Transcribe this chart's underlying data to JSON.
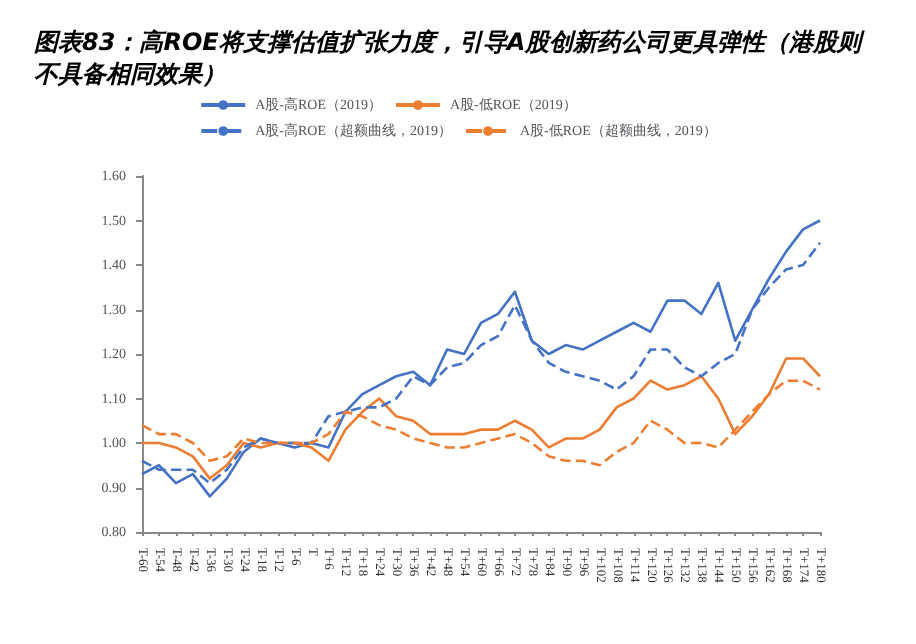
{
  "chart_data": {
    "type": "line",
    "title": "图表83：高ROE将支撑估值扩张力度，引导A股创新药公司更具弹性（港股则不具备相同效果）",
    "legend": "top",
    "grid": false,
    "categories": [
      "T-60",
      "T-54",
      "T-48",
      "T-42",
      "T-36",
      "T-30",
      "T-24",
      "T-18",
      "T-12",
      "T-6",
      "T",
      "T+6",
      "T+12",
      "T+18",
      "T+24",
      "T+30",
      "T+36",
      "T+42",
      "T+48",
      "T+54",
      "T+60",
      "T+66",
      "T+72",
      "T+78",
      "T+84",
      "T+90",
      "T+96",
      "T+102",
      "T+108",
      "T+114",
      "T+120",
      "T+126",
      "T+132",
      "T+138",
      "T+144",
      "T+150",
      "T+156",
      "T+162",
      "T+168",
      "T+174",
      "T+180"
    ],
    "ylim": [
      0.8,
      1.6
    ],
    "yticks": [
      {
        "value": 0.8,
        "label": "0.80"
      },
      {
        "value": 0.9,
        "label": "0.90"
      },
      {
        "value": 1.0,
        "label": "1.00"
      },
      {
        "value": 1.1,
        "label": "1.10"
      },
      {
        "value": 1.2,
        "label": "1.20"
      },
      {
        "value": 1.3,
        "label": "1.30"
      },
      {
        "value": 1.4,
        "label": "1.40"
      },
      {
        "value": 1.5,
        "label": "1.50"
      },
      {
        "value": 1.6,
        "label": "1.60"
      }
    ],
    "series": [
      {
        "name": "A股-高ROE（2019）",
        "color": "#4472c4",
        "line_style": "solid",
        "values": [
          0.93,
          0.95,
          0.91,
          0.93,
          0.88,
          0.92,
          0.98,
          1.01,
          1.0,
          0.99,
          1.0,
          0.99,
          1.07,
          1.11,
          1.13,
          1.15,
          1.16,
          1.13,
          1.21,
          1.2,
          1.27,
          1.29,
          1.34,
          1.23,
          1.2,
          1.22,
          1.21,
          1.23,
          1.25,
          1.27,
          1.25,
          1.32,
          1.32,
          1.29,
          1.36,
          1.23,
          1.3,
          1.37,
          1.43,
          1.48,
          1.5
        ]
      },
      {
        "name": "A股-低ROE（2019）",
        "color": "#ed7d31",
        "line_style": "solid",
        "values": [
          1.0,
          1.0,
          0.99,
          0.97,
          0.92,
          0.95,
          1.0,
          0.99,
          1.0,
          1.0,
          0.99,
          0.96,
          1.03,
          1.07,
          1.1,
          1.06,
          1.05,
          1.02,
          1.02,
          1.02,
          1.03,
          1.03,
          1.05,
          1.03,
          0.99,
          1.01,
          1.01,
          1.03,
          1.08,
          1.1,
          1.14,
          1.12,
          1.13,
          1.15,
          1.1,
          1.02,
          1.06,
          1.11,
          1.19,
          1.19,
          1.15
        ]
      },
      {
        "name": "A股-高ROE（超额曲线，2019）",
        "color": "#4472c4",
        "line_style": "dashed",
        "values": [
          0.96,
          0.94,
          0.94,
          0.94,
          0.91,
          0.94,
          0.99,
          1.01,
          1.0,
          1.0,
          1.0,
          1.06,
          1.07,
          1.08,
          1.08,
          1.1,
          1.15,
          1.13,
          1.17,
          1.18,
          1.22,
          1.24,
          1.31,
          1.23,
          1.18,
          1.16,
          1.15,
          1.14,
          1.12,
          1.15,
          1.21,
          1.21,
          1.17,
          1.15,
          1.18,
          1.2,
          1.3,
          1.35,
          1.39,
          1.4,
          1.45
        ]
      },
      {
        "name": "A股-低ROE（超额曲线，2019）",
        "color": "#ed7d31",
        "line_style": "dashed",
        "values": [
          1.04,
          1.02,
          1.02,
          1.0,
          0.96,
          0.97,
          1.01,
          1.0,
          1.0,
          1.0,
          1.0,
          1.02,
          1.07,
          1.06,
          1.04,
          1.03,
          1.01,
          1.0,
          0.99,
          0.99,
          1.0,
          1.01,
          1.02,
          1.0,
          0.97,
          0.96,
          0.96,
          0.95,
          0.98,
          1.0,
          1.05,
          1.03,
          1.0,
          1.0,
          0.99,
          1.03,
          1.07,
          1.11,
          1.14,
          1.14,
          1.12
        ]
      }
    ]
  }
}
